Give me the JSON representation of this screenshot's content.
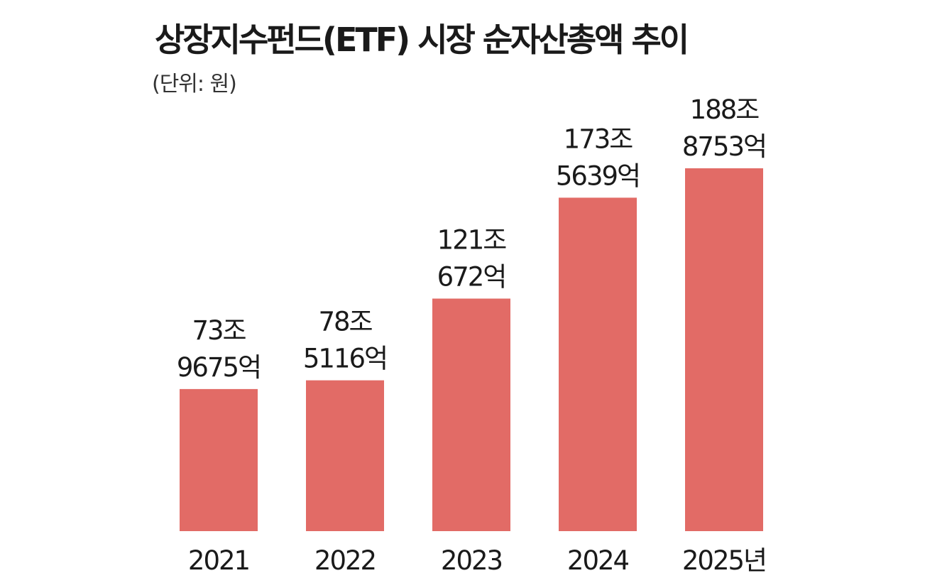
{
  "chart_data": {
    "type": "bar",
    "title": "상장지수펀드(ETF) 시장 순자산총액 추이",
    "subtitle": "(단위: 원)",
    "categories": [
      "2021",
      "2022",
      "2023",
      "2024",
      "2025년"
    ],
    "values": [
      73.9675,
      78.5116,
      121.0672,
      173.5639,
      188.8753
    ],
    "data_labels": [
      [
        "73조",
        "9675억"
      ],
      [
        "78조",
        "5116억"
      ],
      [
        "121조",
        "672억"
      ],
      [
        "173조",
        "5639억"
      ],
      [
        "188조",
        "8753억"
      ]
    ],
    "value_unit": "조원",
    "bar_color": "#e26b66",
    "ylim": [
      0,
      188.8753
    ],
    "grid": false,
    "legend": "none"
  }
}
